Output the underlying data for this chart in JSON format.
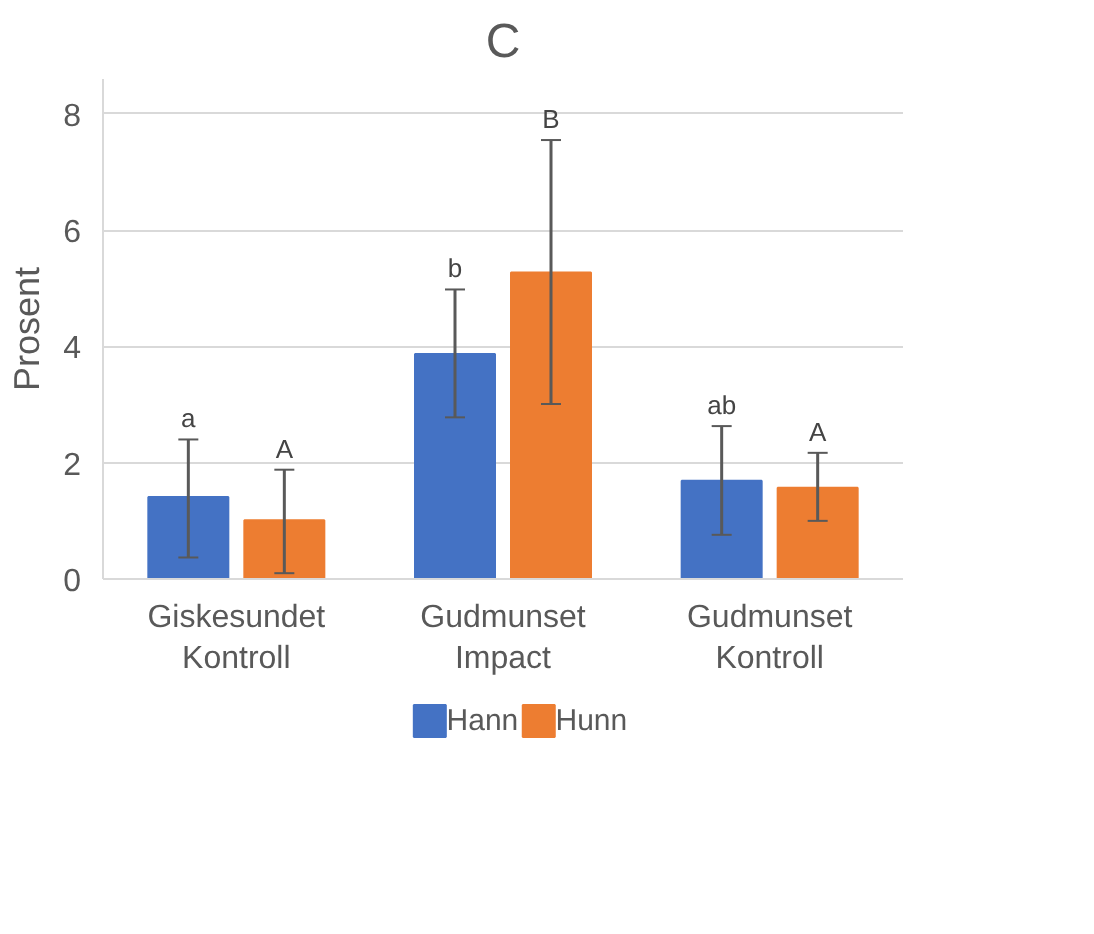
{
  "chart_data": {
    "type": "bar",
    "title": "C",
    "ylabel": "Prosent",
    "categories": [
      "Giskesundet Kontroll",
      "Gudmunset Impact",
      "Gudmunset Kontroll"
    ],
    "series": [
      {
        "name": "Hann",
        "color": "#4472c4",
        "values": [
          1.41,
          3.87,
          1.69
        ],
        "errors": [
          [
            0.37,
            2.4
          ],
          [
            2.78,
            4.98
          ],
          [
            0.76,
            2.63
          ]
        ]
      },
      {
        "name": "Hunn",
        "color": "#ed7d31",
        "values": [
          1.01,
          5.27,
          1.57
        ],
        "errors": [
          [
            0.1,
            1.88
          ],
          [
            3.01,
            7.55
          ],
          [
            1.0,
            2.17
          ]
        ]
      }
    ],
    "ylim": [
      0,
      8.6
    ],
    "yticks": [
      0,
      2,
      4,
      6,
      8
    ],
    "grid": "y",
    "legend": "bottom",
    "annotations": [
      "a",
      "A",
      "b",
      "B",
      "ab",
      "A"
    ]
  }
}
